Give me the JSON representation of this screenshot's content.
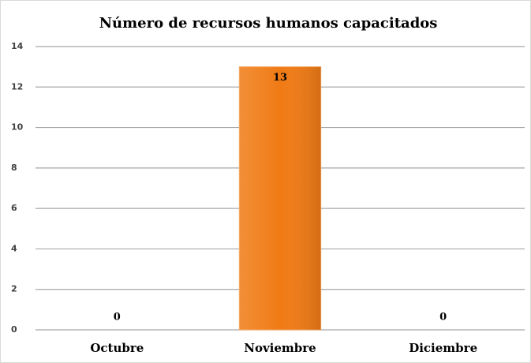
{
  "chart_data": {
    "type": "bar",
    "title": "Número de recursos humanos capacitados",
    "categories": [
      "Octubre",
      "Noviembre",
      "Diciembre"
    ],
    "values": [
      0,
      13,
      0
    ],
    "color": "#f07b15",
    "ylim": [
      0,
      14
    ],
    "yticks": [
      0,
      2,
      4,
      6,
      8,
      10,
      12,
      14
    ],
    "grid": true
  }
}
